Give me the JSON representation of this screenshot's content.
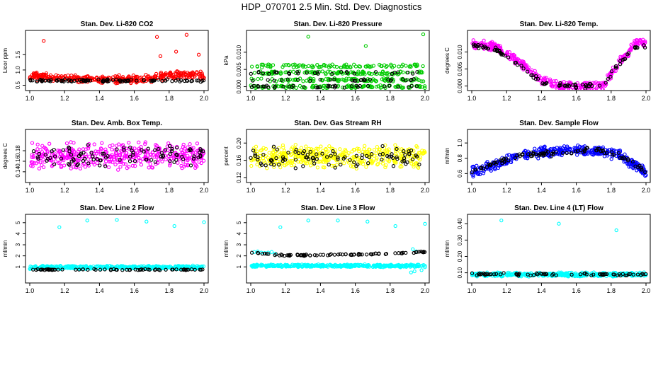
{
  "page": {
    "title": "HDP_070701  2.5 Min. Std. Dev. Diagnostics"
  },
  "colors": {
    "red": "#ff0000",
    "green": "#00cc00",
    "magenta": "#ff00ff",
    "yellow": "#ffff00",
    "blue": "#0000ff",
    "cyan": "#00ffff",
    "black": "#000000"
  },
  "chart_data": [
    {
      "type": "scatter",
      "title": "Stan. Dev. Li-820 CO2",
      "ylabel": "Licor ppm",
      "xlim": [
        1.0,
        2.0
      ],
      "ylim": [
        0.42,
        2.2
      ],
      "xticks": [
        "1.0",
        "1.2",
        "1.4",
        "1.6",
        "1.8",
        "2.0"
      ],
      "yticks": [
        {
          "v": 0.5,
          "label": "0.5"
        },
        {
          "v": 1.0,
          "label": "1.0"
        },
        {
          "v": 1.5,
          "label": "1.5"
        }
      ],
      "series": [
        {
          "name": "primary",
          "color": "#ff0000",
          "base": [
            [
              0,
              0.8
            ],
            [
              0.35,
              0.68
            ],
            [
              0.65,
              0.7
            ],
            [
              0.85,
              0.85
            ],
            [
              1,
              0.8
            ]
          ],
          "noise": 0.15,
          "count": 380,
          "seed": 11,
          "outliers": [
            [
              1.08,
              1.95
            ],
            [
              1.73,
              2.08
            ],
            [
              1.9,
              2.15
            ],
            [
              1.84,
              1.6
            ],
            [
              1.75,
              1.45
            ],
            [
              1.97,
              1.5
            ]
          ]
        },
        {
          "name": "reference",
          "color": "#000000",
          "base": [
            [
              0,
              0.65
            ],
            [
              1,
              0.65
            ]
          ],
          "noise": 0.05,
          "count": 95,
          "seed": 12,
          "outliers": []
        }
      ]
    },
    {
      "type": "scatter",
      "title": "Stan. Dev. Li-820 Pressure",
      "ylabel": "kPa",
      "xlim": [
        1.0,
        2.0
      ],
      "ylim": [
        -0.0003,
        0.0155
      ],
      "xticks": [
        "1.0",
        "1.2",
        "1.4",
        "1.6",
        "1.8",
        "2.0"
      ],
      "yticks": [
        {
          "v": 0,
          "label": "0.000"
        },
        {
          "v": 0.005,
          "label": "0.005"
        },
        {
          "v": 0.01,
          "label": "0.010"
        }
      ],
      "series": [
        {
          "name": "primary",
          "color": "#00cc00",
          "base": [
            [
              0,
              0.003
            ],
            [
              1,
              0.003
            ]
          ],
          "noise": 0.003,
          "count": 420,
          "seed": 21,
          "levels": [
            0,
            0.002,
            0.004,
            0.006
          ],
          "outliers": [
            [
              1.33,
              0.0145
            ],
            [
              1.66,
              0.0118
            ],
            [
              1.99,
              0.0152
            ]
          ]
        },
        {
          "name": "reference",
          "color": "#000000",
          "base": [
            [
              0,
              0.002
            ],
            [
              1,
              0.002
            ]
          ],
          "noise": 0.002,
          "count": 95,
          "seed": 22,
          "levels": [
            0,
            0.002,
            0.004
          ],
          "outliers": []
        }
      ]
    },
    {
      "type": "scatter",
      "title": "Stan. Dev. Li-820 Temp.",
      "ylabel": "degrees C",
      "xlim": [
        1.0,
        2.0
      ],
      "ylim": [
        -0.0005,
        0.0155
      ],
      "xticks": [
        "1.0",
        "1.2",
        "1.4",
        "1.6",
        "1.8",
        "2.0"
      ],
      "yticks": [
        {
          "v": 0,
          "label": "0.000"
        },
        {
          "v": 0.005,
          "label": "0.005"
        },
        {
          "v": 0.01,
          "label": "0.010"
        }
      ],
      "series": [
        {
          "name": "primary",
          "color": "#ff00ff",
          "base": [
            [
              0,
              0.0125
            ],
            [
              0.15,
              0.0115
            ],
            [
              0.3,
              0.006
            ],
            [
              0.4,
              0.0015
            ],
            [
              0.5,
              0
            ],
            [
              0.75,
              0
            ],
            [
              0.85,
              0.007
            ],
            [
              0.95,
              0.013
            ],
            [
              1,
              0.0125
            ]
          ],
          "noise": 0.0015,
          "count": 400,
          "seed": 31,
          "outliers": []
        },
        {
          "name": "reference",
          "color": "#000000",
          "base": [
            [
              0,
              0.012
            ],
            [
              0.15,
              0.0105
            ],
            [
              0.3,
              0.005
            ],
            [
              0.4,
              0.0008
            ],
            [
              0.5,
              0
            ],
            [
              0.75,
              0
            ],
            [
              0.85,
              0.007
            ],
            [
              0.95,
              0.012
            ],
            [
              1,
              0.0115
            ]
          ],
          "noise": 0.0009,
          "count": 95,
          "seed": 32,
          "outliers": []
        }
      ]
    },
    {
      "type": "scatter",
      "title": "Stan. Dev. Amb. Box Temp.",
      "ylabel": "degrees C",
      "xlim": [
        1.0,
        2.0
      ],
      "ylim": [
        0.125,
        0.215
      ],
      "xticks": [
        "1.0",
        "1.2",
        "1.4",
        "1.6",
        "1.8",
        "2.0"
      ],
      "yticks": [
        {
          "v": 0.14,
          "label": "0.14"
        },
        {
          "v": 0.16,
          "label": "0.16"
        },
        {
          "v": 0.18,
          "label": "0.18"
        }
      ],
      "series": [
        {
          "name": "primary",
          "color": "#ff00ff",
          "base": [
            [
              0,
              0.17
            ],
            [
              1,
              0.17
            ]
          ],
          "noise": 0.028,
          "count": 420,
          "seed": 41,
          "outliers": []
        },
        {
          "name": "reference",
          "color": "#000000",
          "base": [
            [
              0,
              0.17
            ],
            [
              1,
              0.17
            ]
          ],
          "noise": 0.025,
          "count": 95,
          "seed": 42,
          "outliers": []
        }
      ]
    },
    {
      "type": "scatter",
      "title": "Stan. Dev. Gas Stream RH",
      "ylabel": "percent",
      "xlim": [
        1.0,
        2.0
      ],
      "ylim": [
        0.115,
        0.225
      ],
      "xticks": [
        "1.0",
        "1.2",
        "1.4",
        "1.6",
        "1.8",
        "2.0"
      ],
      "yticks": [
        {
          "v": 0.12,
          "label": "0.12"
        },
        {
          "v": 0.16,
          "label": "0.16"
        },
        {
          "v": 0.2,
          "label": "0.20"
        }
      ],
      "series": [
        {
          "name": "primary",
          "color": "#ffff00",
          "base": [
            [
              0,
              0.168
            ],
            [
              1,
              0.168
            ]
          ],
          "noise": 0.03,
          "count": 420,
          "seed": 51,
          "outliers": []
        },
        {
          "name": "reference",
          "color": "#000000",
          "base": [
            [
              0,
              0.168
            ],
            [
              1,
              0.168
            ]
          ],
          "noise": 0.028,
          "count": 95,
          "seed": 52,
          "outliers": []
        }
      ]
    },
    {
      "type": "scatter",
      "title": "Stan. Dev. Sample Flow",
      "ylabel": "ml/min",
      "xlim": [
        1.0,
        2.0
      ],
      "ylim": [
        0.52,
        1.14
      ],
      "xticks": [
        "1.0",
        "1.2",
        "1.4",
        "1.6",
        "1.8",
        "2.0"
      ],
      "yticks": [
        {
          "v": 0.6,
          "label": "0.6"
        },
        {
          "v": 0.8,
          "label": "0.8"
        },
        {
          "v": 1.0,
          "label": "1.0"
        }
      ],
      "series": [
        {
          "name": "primary",
          "color": "#0000ff",
          "base": [
            [
              0,
              0.63
            ],
            [
              0.15,
              0.72
            ],
            [
              0.3,
              0.85
            ],
            [
              0.5,
              0.9
            ],
            [
              0.7,
              0.9
            ],
            [
              0.85,
              0.84
            ],
            [
              1,
              0.62
            ]
          ],
          "noise": 0.08,
          "count": 400,
          "seed": 61,
          "outliers": []
        },
        {
          "name": "reference",
          "color": "#000000",
          "base": [
            [
              0,
              0.63
            ],
            [
              0.15,
              0.75
            ],
            [
              0.3,
              0.86
            ],
            [
              0.5,
              0.86
            ],
            [
              0.7,
              0.92
            ],
            [
              0.85,
              0.84
            ],
            [
              1,
              0.62
            ]
          ],
          "noise": 0.04,
          "count": 95,
          "seed": 62,
          "outliers": []
        }
      ]
    },
    {
      "type": "scatter",
      "title": "Stan. Dev. Line 2 Flow",
      "ylabel": "ml/min",
      "xlim": [
        1.0,
        2.0
      ],
      "ylim": [
        -0.2,
        5.5
      ],
      "xticks": [
        "1.0",
        "1.2",
        "1.4",
        "1.6",
        "1.8",
        "2.0"
      ],
      "yticks": [
        {
          "v": 1,
          "label": "1"
        },
        {
          "v": 2,
          "label": "2"
        },
        {
          "v": 3,
          "label": "3"
        },
        {
          "v": 4,
          "label": "4"
        },
        {
          "v": 5,
          "label": "5"
        }
      ],
      "series": [
        {
          "name": "primary",
          "color": "#00ffff",
          "base": [
            [
              0,
              0.95
            ],
            [
              1,
              0.95
            ]
          ],
          "noise": 0.18,
          "count": 420,
          "seed": 71,
          "outliers": [
            [
              1.17,
              4.6
            ],
            [
              1.33,
              5.2
            ],
            [
              1.5,
              5.25
            ],
            [
              1.67,
              5.1
            ],
            [
              1.83,
              4.7
            ],
            [
              2.0,
              5.05
            ]
          ]
        },
        {
          "name": "reference",
          "color": "#000000",
          "base": [
            [
              0,
              0.75
            ],
            [
              1,
              0.75
            ]
          ],
          "noise": 0.06,
          "count": 70,
          "seed": 72,
          "outliers": []
        }
      ]
    },
    {
      "type": "scatter",
      "title": "Stan. Dev. Line 3 Flow",
      "ylabel": "ml/min",
      "xlim": [
        1.0,
        2.0
      ],
      "ylim": [
        -0.2,
        5.5
      ],
      "xticks": [
        "1.0",
        "1.2",
        "1.4",
        "1.6",
        "1.8",
        "2.0"
      ],
      "yticks": [
        {
          "v": 1,
          "label": "1"
        },
        {
          "v": 2,
          "label": "2"
        },
        {
          "v": 3,
          "label": "3"
        },
        {
          "v": 4,
          "label": "4"
        },
        {
          "v": 5,
          "label": "5"
        }
      ],
      "series": [
        {
          "name": "primary",
          "color": "#00ffff",
          "base": [
            [
              0,
              1.1
            ],
            [
              1,
              1.1
            ]
          ],
          "noise": 0.14,
          "count": 380,
          "seed": 81,
          "outliers": [
            [
              1.17,
              4.6
            ],
            [
              1.33,
              5.2
            ],
            [
              1.5,
              5.2
            ],
            [
              1.67,
              5.1
            ],
            [
              1.83,
              4.7
            ],
            [
              2.0,
              4.9
            ],
            [
              1.02,
              2.35
            ],
            [
              1.04,
              2.4
            ],
            [
              1.06,
              2.3
            ],
            [
              1.08,
              2.25
            ],
            [
              1.1,
              2.3
            ],
            [
              1.12,
              2.35
            ],
            [
              1.14,
              2.2
            ],
            [
              1.93,
              2.6
            ],
            [
              1.95,
              2.4
            ],
            [
              1.92,
              0.5
            ],
            [
              1.94,
              0.6
            ],
            [
              1.98,
              0.7
            ]
          ]
        },
        {
          "name": "reference",
          "color": "#000000",
          "base": [
            [
              0,
              2.3
            ],
            [
              0.2,
              2.05
            ],
            [
              0.5,
              2.1
            ],
            [
              0.8,
              2.2
            ],
            [
              1,
              2.35
            ]
          ],
          "noise": 0.08,
          "count": 85,
          "seed": 82,
          "outliers": []
        }
      ]
    },
    {
      "type": "scatter",
      "title": "Stan. Dev. Line 4 (LT) Flow",
      "ylabel": "ml/min",
      "xlim": [
        1.0,
        2.0
      ],
      "ylim": [
        0.055,
        0.44
      ],
      "xticks": [
        "1.0",
        "1.2",
        "1.4",
        "1.6",
        "1.8",
        "2.0"
      ],
      "yticks": [
        {
          "v": 0.1,
          "label": "0.10"
        },
        {
          "v": 0.2,
          "label": "0.20"
        },
        {
          "v": 0.3,
          "label": "0.30"
        },
        {
          "v": 0.4,
          "label": "0.40"
        }
      ],
      "series": [
        {
          "name": "primary",
          "color": "#00ffff",
          "base": [
            [
              0,
              0.09
            ],
            [
              1,
              0.09
            ]
          ],
          "noise": 0.014,
          "count": 420,
          "seed": 91,
          "outliers": [
            [
              1.17,
              0.42
            ],
            [
              1.5,
              0.4
            ],
            [
              1.83,
              0.36
            ]
          ]
        },
        {
          "name": "reference",
          "color": "#000000",
          "base": [
            [
              0,
              0.09
            ],
            [
              1,
              0.09
            ]
          ],
          "noise": 0.01,
          "count": 70,
          "seed": 92,
          "outliers": []
        }
      ]
    }
  ]
}
